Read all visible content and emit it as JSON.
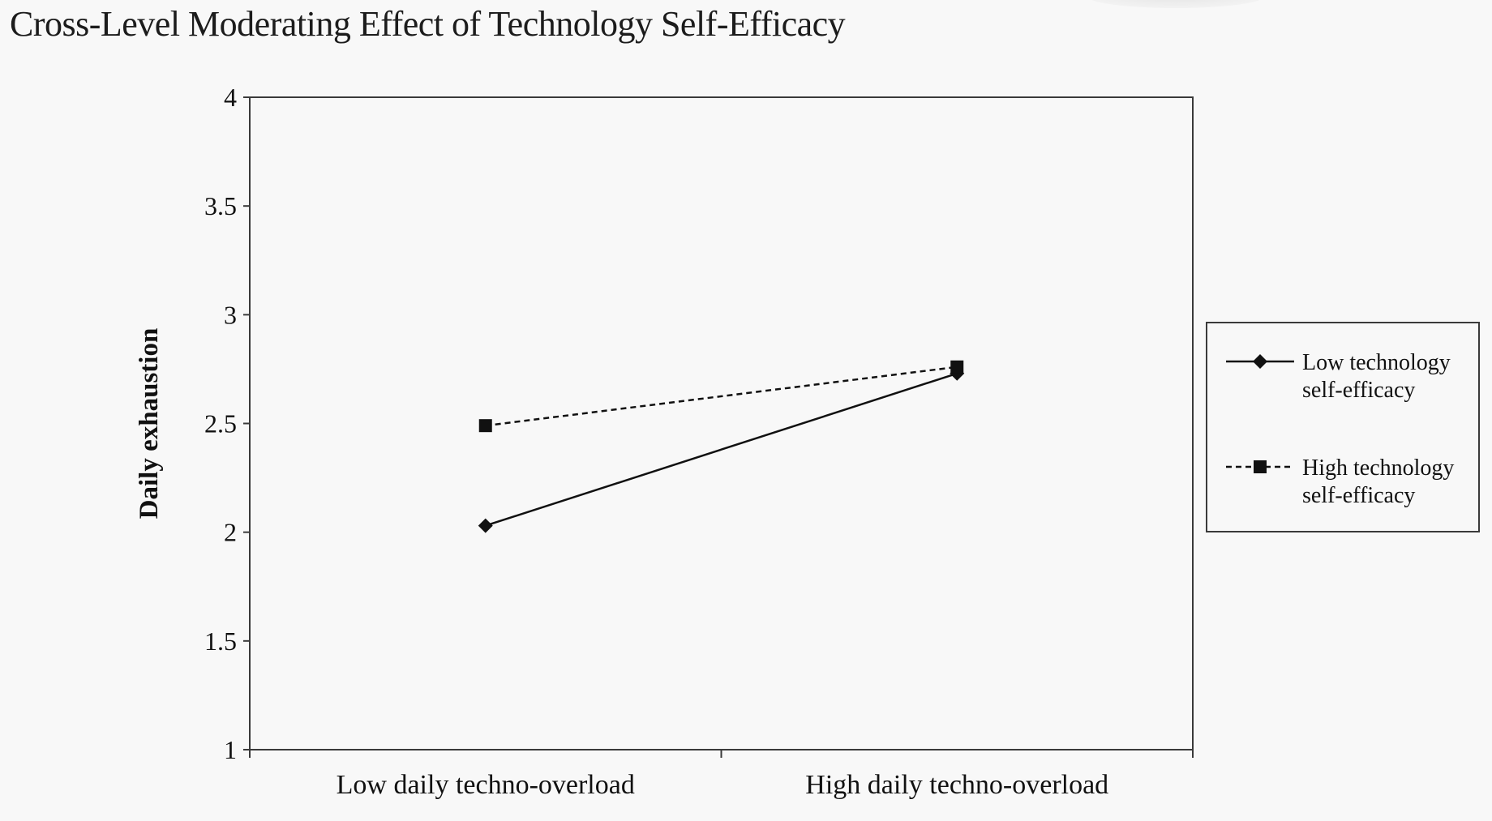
{
  "page": {
    "title": "Cross-Level Moderating Effect of Technology Self-Efficacy"
  },
  "chart_data": {
    "type": "line",
    "title": "",
    "xlabel": "",
    "ylabel": "Daily exhaustion",
    "categories": [
      "Low daily techno-overload",
      "High daily techno-overload"
    ],
    "ylim": [
      1,
      4
    ],
    "yticks": [
      1,
      1.5,
      2,
      2.5,
      3,
      3.5,
      4
    ],
    "ytick_labels": [
      "1",
      "1.5",
      "2",
      "2.5",
      "3",
      "3.5",
      "4"
    ],
    "grid": false,
    "legend_position": "right",
    "series": [
      {
        "name": "Low technology self-efficacy",
        "name_lines": [
          "Low technology",
          "self-efficacy"
        ],
        "values": [
          2.03,
          2.73
        ],
        "marker": "diamond",
        "line_style": "solid",
        "color": "#111111"
      },
      {
        "name": "High technology self-efficacy",
        "name_lines": [
          "High technology",
          "self-efficacy"
        ],
        "values": [
          2.49,
          2.76
        ],
        "marker": "square",
        "line_style": "dashed",
        "color": "#111111"
      }
    ]
  }
}
